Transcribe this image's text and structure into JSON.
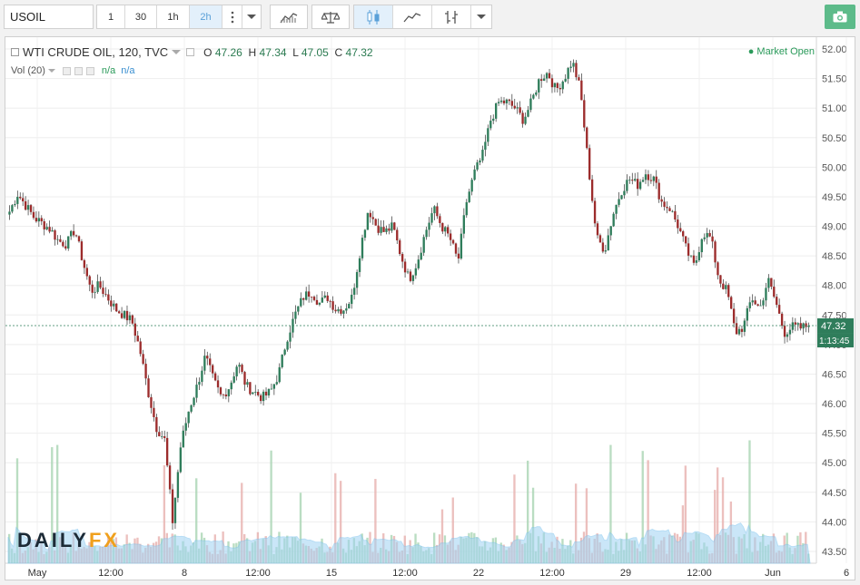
{
  "toolbar": {
    "symbol": "USOIL",
    "intervals": [
      "1",
      "30",
      "1h",
      "2h"
    ],
    "active_interval": "2h",
    "more_icon": "vertical-dots-icon",
    "dropdown_icon": "chevron-down-icon",
    "indicators_icon": "indicators-icon",
    "compare_icon": "balance-scale-icon",
    "candle_icon": "candlestick-icon",
    "line_icon": "line-chart-icon",
    "bar_icon": "ohlc-bar-icon",
    "camera_icon": "camera-icon"
  },
  "legend": {
    "title": "WTI CRUDE OIL, 120, TVC",
    "o_label": "O",
    "o_value": "47.26",
    "h_label": "H",
    "h_value": "47.34",
    "l_label": "L",
    "l_value": "47.05",
    "c_label": "C",
    "c_value": "47.32",
    "vol_label": "Vol (20)",
    "vol_value1": "n/a",
    "vol_value2": "n/a",
    "market_status": "Market Open"
  },
  "price_tag": {
    "price": "47.32",
    "countdown": "1:13:45"
  },
  "logo": {
    "part1": "DAILY",
    "part2": "FX"
  },
  "colors": {
    "up": "#2f7d5b",
    "down": "#9c2c2c",
    "vol_up": "#a9d5b3",
    "vol_down": "#e7b0ae",
    "vol_ma": "#9fd3f3",
    "accent": "#4a90d9",
    "green": "#2a9a5a"
  },
  "chart_data": {
    "type": "candlestick",
    "title": "WTI CRUDE OIL, 120, TVC",
    "ylim": [
      43.3,
      52.2
    ],
    "y_ticks": [
      "52.00",
      "51.50",
      "51.00",
      "50.50",
      "50.00",
      "49.50",
      "49.00",
      "48.50",
      "48.00",
      "47.50",
      "47.00",
      "46.50",
      "46.00",
      "45.50",
      "45.00",
      "44.50",
      "44.00",
      "43.50"
    ],
    "x_ticks": [
      "May",
      "12:00",
      "8",
      "12:00",
      "15",
      "12:00",
      "22",
      "12:00",
      "29",
      "12:00",
      "Jun",
      "6"
    ],
    "close_path": [
      49.25,
      49.55,
      49.35,
      49.15,
      49.05,
      48.95,
      48.75,
      48.7,
      48.95,
      48.4,
      47.9,
      48.0,
      47.8,
      47.6,
      47.5,
      47.4,
      46.9,
      46.2,
      45.6,
      45.4,
      44.0,
      45.3,
      45.9,
      46.3,
      46.8,
      46.4,
      46.1,
      46.3,
      46.7,
      46.3,
      46.2,
      46.1,
      46.2,
      46.5,
      47.1,
      47.5,
      47.8,
      47.9,
      47.7,
      47.8,
      47.6,
      47.6,
      47.8,
      48.6,
      49.3,
      49.0,
      48.9,
      49.0,
      48.5,
      48.1,
      48.4,
      48.9,
      49.3,
      49.0,
      48.8,
      48.4,
      49.4,
      49.9,
      50.2,
      50.8,
      51.1,
      51.1,
      51.0,
      50.8,
      51.1,
      51.5,
      51.6,
      51.3,
      51.5,
      51.8,
      51.3,
      50.0,
      48.8,
      48.6,
      49.2,
      49.6,
      49.8,
      49.7,
      49.9,
      49.8,
      49.4,
      49.3,
      49.0,
      48.6,
      48.3,
      48.9,
      48.8,
      48.1,
      47.9,
      47.2,
      47.3,
      47.8,
      47.6,
      48.1,
      47.7,
      47.2,
      47.3,
      47.28,
      47.32
    ]
  }
}
